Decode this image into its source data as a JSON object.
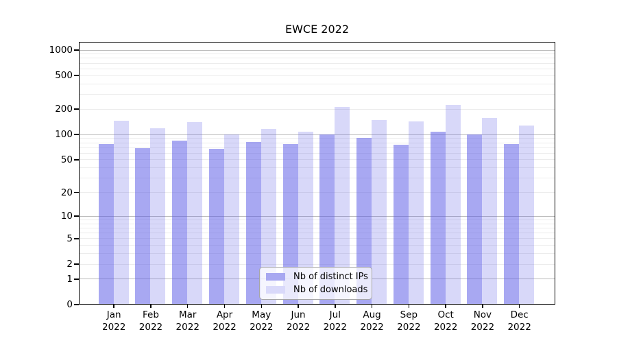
{
  "chart_data": {
    "type": "bar",
    "title": "EWCE 2022",
    "year": "2022",
    "months": [
      "Jan",
      "Feb",
      "Mar",
      "Apr",
      "May",
      "Jun",
      "Jul",
      "Aug",
      "Sep",
      "Oct",
      "Nov",
      "Dec"
    ],
    "categories": [
      "Jan 2022",
      "Feb 2022",
      "Mar 2022",
      "Apr 2022",
      "May 2022",
      "Jun 2022",
      "Jul 2022",
      "Aug 2022",
      "Sep 2022",
      "Oct 2022",
      "Nov 2022",
      "Dec 2022"
    ],
    "series": [
      {
        "name": "Nb of distinct IPs",
        "color": "#a8a8f1",
        "fill_rgba": "rgba(90,90,230,0.53)",
        "values": [
          76,
          68,
          84,
          67,
          81,
          77,
          99,
          91,
          75,
          108,
          100,
          77
        ]
      },
      {
        "name": "Nb of downloads",
        "color": "#d9d9fa",
        "fill_rgba": "rgba(90,90,230,0.24)",
        "values": [
          145,
          118,
          140,
          100,
          115,
          108,
          212,
          147,
          141,
          222,
          157,
          128
        ]
      }
    ],
    "yscale": "log10(value+1)",
    "ylim": [
      0,
      1000
    ],
    "yticks": [
      0,
      1,
      2,
      5,
      10,
      20,
      50,
      100,
      200,
      500,
      1000
    ],
    "ytick_labels": [
      "0",
      "1",
      "2",
      "5",
      "10",
      "20",
      "50",
      "100",
      "200",
      "500",
      "1000"
    ],
    "major_gridlines": [
      1,
      10,
      100,
      1000
    ],
    "minor_gridlines": [
      2,
      3,
      4,
      5,
      6,
      7,
      8,
      9,
      20,
      30,
      40,
      50,
      60,
      70,
      80,
      90,
      200,
      300,
      400,
      500,
      600,
      700,
      800,
      900
    ],
    "grid": true,
    "legend": {
      "position": "inside-bottom-center",
      "items": [
        "Nb of distinct IPs",
        "Nb of downloads"
      ]
    }
  },
  "colors": {
    "background": "#ffffff",
    "axis_frame": "#000000",
    "grid_major": "#bcbcbc",
    "grid_minor": "#ececec",
    "bar_distinct_ips": "#a8a8f1",
    "bar_downloads": "#d9d9fa",
    "legend_border": "#a6a6a6",
    "text": "#000000"
  }
}
